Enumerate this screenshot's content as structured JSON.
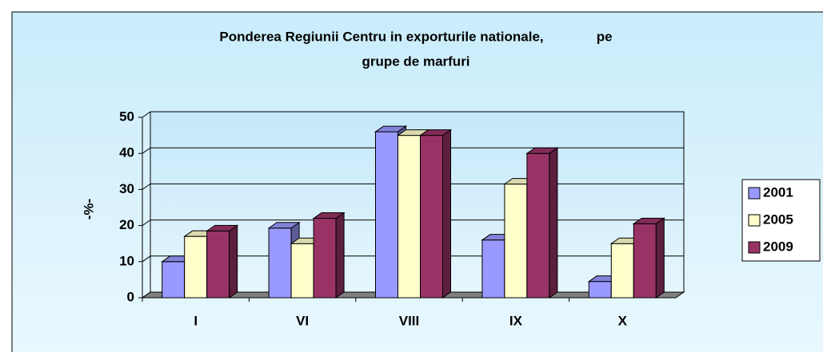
{
  "chart_data": {
    "type": "bar3d",
    "title": [
      "Ponderea Regiunii Centru in exporturile nationale,              pe",
      "grupe de marfuri"
    ],
    "y_label": "-%-",
    "categories": [
      "I",
      "VI",
      "VIII",
      "IX",
      "X"
    ],
    "series": [
      {
        "name": "2001",
        "color": "#9999ff",
        "values": [
          10,
          19.3,
          46,
          16,
          4.5
        ]
      },
      {
        "name": "2005",
        "color": "#ffffcc",
        "values": [
          17,
          15,
          45,
          31.5,
          15
        ]
      },
      {
        "name": "2009",
        "color": "#993366",
        "values": [
          18.5,
          22,
          45,
          40,
          20.5
        ]
      }
    ],
    "ylim": [
      0,
      50
    ],
    "yticks": [
      0,
      10,
      20,
      30,
      40,
      50
    ],
    "grid": true,
    "legend": "right"
  }
}
